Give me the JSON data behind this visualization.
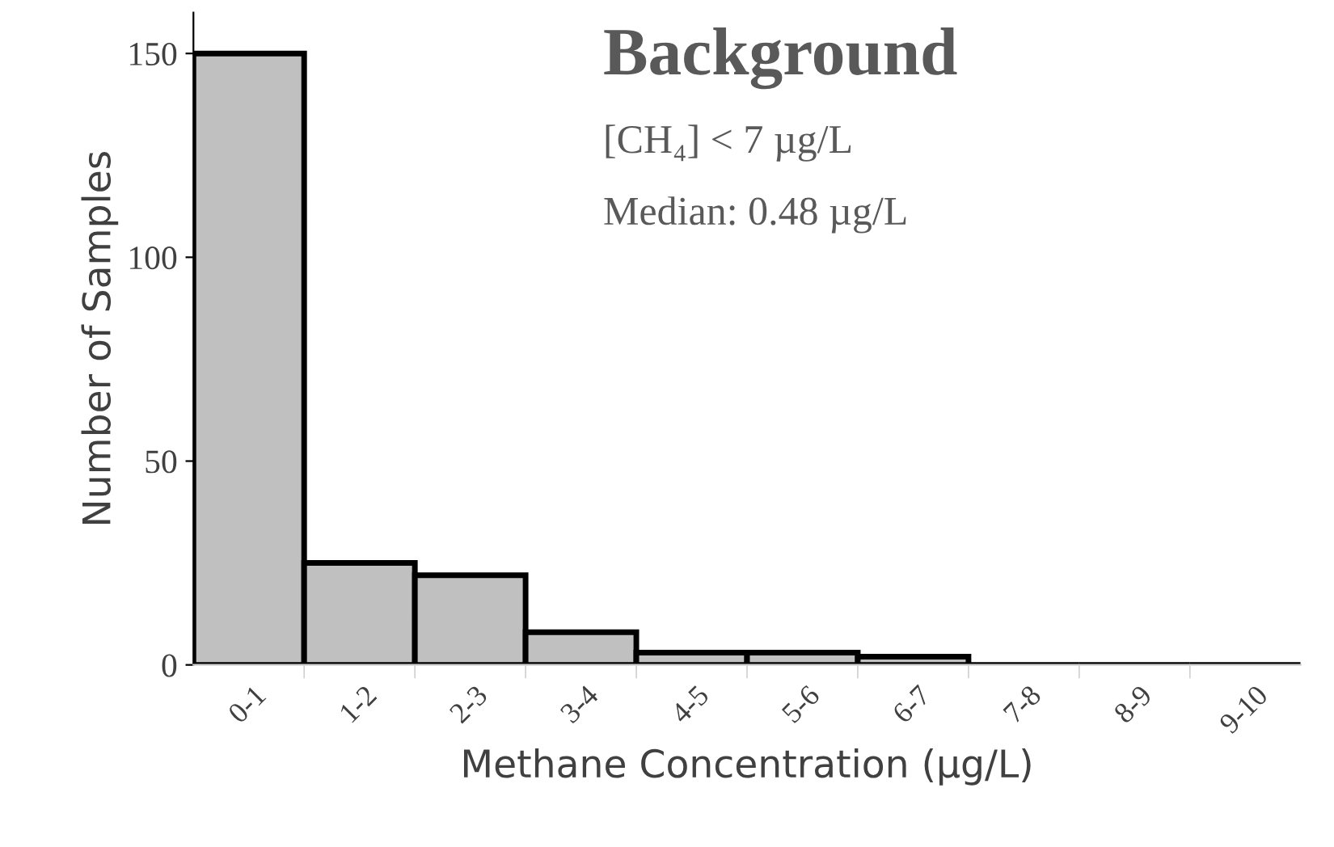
{
  "chart_data": {
    "type": "bar",
    "xlabel": "Methane Concentration (µg/L)",
    "ylabel": "Number of Samples",
    "categories": [
      "0-1",
      "1-2",
      "2-3",
      "3-4",
      "4-5",
      "5-6",
      "6-7",
      "7-8",
      "8-9",
      "9-10"
    ],
    "values": [
      150,
      25,
      22,
      8,
      3,
      3,
      2,
      0,
      0,
      0
    ],
    "color": "#c0c0c0",
    "ylim": [
      0,
      160
    ],
    "yticks": [
      0,
      50,
      100,
      150
    ],
    "grid": false,
    "annotations": [
      "Background",
      "[CH₄] < 7 µg/L",
      "Median: 0.48 µg/L"
    ]
  }
}
